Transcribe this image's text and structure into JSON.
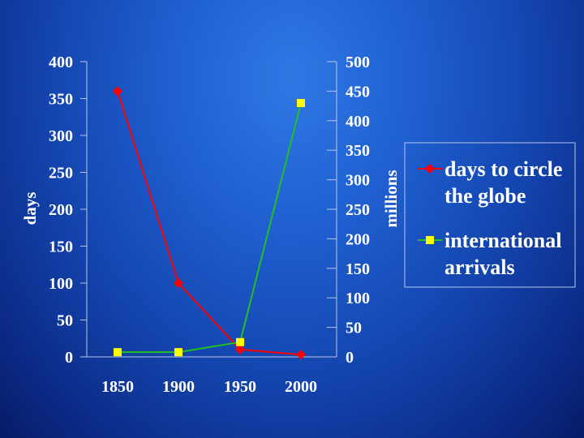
{
  "chart_data": {
    "type": "line",
    "categories": [
      "1850",
      "1900",
      "1950",
      "2000"
    ],
    "y_left": {
      "label": "days",
      "ylim": [
        0,
        400
      ],
      "ticks": [
        "0",
        "50",
        "100",
        "150",
        "200",
        "250",
        "300",
        "350",
        "400"
      ]
    },
    "y_right": {
      "label": "millions",
      "ylim": [
        0,
        500
      ],
      "ticks": [
        "0",
        "50",
        "100",
        "150",
        "200",
        "250",
        "300",
        "350",
        "400",
        "450",
        "500"
      ]
    },
    "series": [
      {
        "name": "days to circle the globe",
        "axis": "left",
        "color": "#ff0000",
        "marker": "diamond",
        "values": [
          360,
          100,
          10,
          3
        ]
      },
      {
        "name": "international arrivals",
        "axis": "right",
        "color": "#ffff00",
        "marker": "square",
        "line_color": "#22c020",
        "values": [
          8,
          8,
          25,
          430
        ]
      }
    ],
    "legend": {
      "position": "right",
      "items": [
        {
          "lines": [
            "days to circle",
            "the globe"
          ]
        },
        {
          "lines": [
            "international",
            "arrivals"
          ]
        }
      ]
    },
    "grid": false
  },
  "colors": {
    "background": "#1f5fd0",
    "text": "#ffffff",
    "frame": "#b7c6e8"
  }
}
